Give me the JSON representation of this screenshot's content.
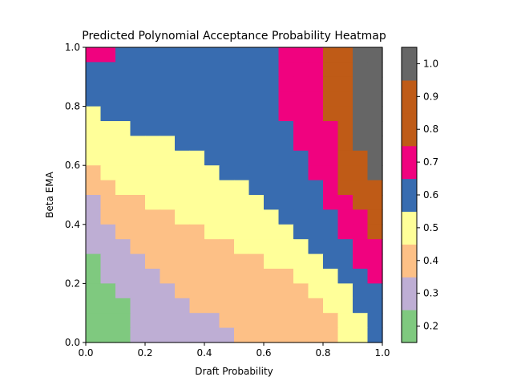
{
  "chart_data": {
    "type": "heatmap",
    "title": "Predicted Polynomial Acceptance Probability Heatmap",
    "xlabel": "Draft Probability",
    "ylabel": "Beta EMA",
    "xlim": [
      0.0,
      1.0
    ],
    "ylim": [
      0.0,
      1.0
    ],
    "xticks": [
      "0.0",
      "0.2",
      "0.4",
      "0.6",
      "0.8",
      "1.0"
    ],
    "yticks": [
      "0.0",
      "0.2",
      "0.4",
      "0.6",
      "0.8",
      "1.0"
    ],
    "grid_resolution": 20,
    "grid_note": "rows ordered from y=0.95 (top) down to y=0.0 (bottom); columns from x=0.0 to x=0.95; each cell spans 0.05 in x and y; values are the discrete color bins",
    "grid": [
      [
        0.7,
        0.7,
        0.6,
        0.6,
        0.6,
        0.6,
        0.6,
        0.6,
        0.6,
        0.6,
        0.6,
        0.6,
        0.6,
        0.7,
        0.7,
        0.7,
        0.8,
        0.8,
        1.0,
        1.0
      ],
      [
        0.6,
        0.6,
        0.6,
        0.6,
        0.6,
        0.6,
        0.6,
        0.6,
        0.6,
        0.6,
        0.6,
        0.6,
        0.6,
        0.7,
        0.7,
        0.7,
        0.8,
        0.8,
        1.0,
        1.0
      ],
      [
        0.6,
        0.6,
        0.6,
        0.6,
        0.6,
        0.6,
        0.6,
        0.6,
        0.6,
        0.6,
        0.6,
        0.6,
        0.6,
        0.7,
        0.7,
        0.7,
        0.8,
        0.8,
        1.0,
        1.0
      ],
      [
        0.6,
        0.6,
        0.6,
        0.6,
        0.6,
        0.6,
        0.6,
        0.6,
        0.6,
        0.6,
        0.6,
        0.6,
        0.6,
        0.7,
        0.7,
        0.7,
        0.8,
        0.8,
        1.0,
        1.0
      ],
      [
        0.5,
        0.6,
        0.6,
        0.6,
        0.6,
        0.6,
        0.6,
        0.6,
        0.6,
        0.6,
        0.6,
        0.6,
        0.6,
        0.7,
        0.7,
        0.7,
        0.8,
        0.8,
        1.0,
        1.0
      ],
      [
        0.5,
        0.5,
        0.5,
        0.6,
        0.6,
        0.6,
        0.6,
        0.6,
        0.6,
        0.6,
        0.6,
        0.6,
        0.6,
        0.6,
        0.7,
        0.7,
        0.7,
        0.8,
        1.0,
        1.0
      ],
      [
        0.5,
        0.5,
        0.5,
        0.5,
        0.5,
        0.5,
        0.6,
        0.6,
        0.6,
        0.6,
        0.6,
        0.6,
        0.6,
        0.6,
        0.7,
        0.7,
        0.7,
        0.8,
        1.0,
        1.0
      ],
      [
        0.5,
        0.5,
        0.5,
        0.5,
        0.5,
        0.5,
        0.5,
        0.5,
        0.6,
        0.6,
        0.6,
        0.6,
        0.6,
        0.6,
        0.6,
        0.7,
        0.7,
        0.8,
        0.8,
        1.0
      ],
      [
        0.4,
        0.5,
        0.5,
        0.5,
        0.5,
        0.5,
        0.5,
        0.5,
        0.5,
        0.6,
        0.6,
        0.6,
        0.6,
        0.6,
        0.6,
        0.7,
        0.7,
        0.8,
        0.8,
        1.0
      ],
      [
        0.4,
        0.4,
        0.5,
        0.5,
        0.5,
        0.5,
        0.5,
        0.5,
        0.5,
        0.5,
        0.5,
        0.6,
        0.6,
        0.6,
        0.6,
        0.6,
        0.7,
        0.8,
        0.8,
        0.9
      ],
      [
        0.3,
        0.4,
        0.4,
        0.4,
        0.5,
        0.5,
        0.5,
        0.5,
        0.5,
        0.5,
        0.5,
        0.5,
        0.6,
        0.6,
        0.6,
        0.6,
        0.7,
        0.7,
        0.8,
        0.8
      ],
      [
        0.3,
        0.4,
        0.4,
        0.4,
        0.4,
        0.4,
        0.5,
        0.5,
        0.5,
        0.5,
        0.5,
        0.5,
        0.5,
        0.6,
        0.6,
        0.6,
        0.6,
        0.7,
        0.7,
        0.8
      ],
      [
        0.3,
        0.3,
        0.4,
        0.4,
        0.4,
        0.4,
        0.4,
        0.4,
        0.5,
        0.5,
        0.5,
        0.5,
        0.5,
        0.5,
        0.6,
        0.6,
        0.6,
        0.7,
        0.7,
        0.8
      ],
      [
        0.3,
        0.3,
        0.3,
        0.4,
        0.4,
        0.4,
        0.4,
        0.4,
        0.4,
        0.4,
        0.5,
        0.5,
        0.5,
        0.5,
        0.5,
        0.6,
        0.6,
        0.6,
        0.7,
        0.7
      ],
      [
        0.2,
        0.3,
        0.3,
        0.3,
        0.4,
        0.4,
        0.4,
        0.4,
        0.4,
        0.4,
        0.4,
        0.4,
        0.5,
        0.5,
        0.5,
        0.5,
        0.6,
        0.6,
        0.7,
        0.7
      ],
      [
        0.2,
        0.3,
        0.3,
        0.3,
        0.3,
        0.4,
        0.4,
        0.4,
        0.4,
        0.4,
        0.4,
        0.4,
        0.4,
        0.4,
        0.5,
        0.5,
        0.5,
        0.6,
        0.6,
        0.7
      ],
      [
        0.2,
        0.2,
        0.3,
        0.3,
        0.3,
        0.3,
        0.4,
        0.4,
        0.4,
        0.4,
        0.4,
        0.4,
        0.4,
        0.4,
        0.4,
        0.5,
        0.5,
        0.5,
        0.6,
        0.6
      ],
      [
        0.2,
        0.2,
        0.2,
        0.3,
        0.3,
        0.3,
        0.3,
        0.4,
        0.4,
        0.4,
        0.4,
        0.4,
        0.4,
        0.4,
        0.4,
        0.4,
        0.5,
        0.5,
        0.6,
        0.6
      ],
      [
        0.2,
        0.2,
        0.2,
        0.3,
        0.3,
        0.3,
        0.3,
        0.3,
        0.3,
        0.4,
        0.4,
        0.4,
        0.4,
        0.4,
        0.4,
        0.4,
        0.4,
        0.5,
        0.5,
        0.6
      ],
      [
        0.2,
        0.2,
        0.2,
        0.3,
        0.3,
        0.3,
        0.3,
        0.3,
        0.3,
        0.3,
        0.4,
        0.4,
        0.4,
        0.4,
        0.4,
        0.4,
        0.4,
        0.5,
        0.5,
        0.6
      ]
    ],
    "colorbar": {
      "ticks": [
        "0.2",
        "0.3",
        "0.4",
        "0.5",
        "0.6",
        "0.7",
        "0.8",
        "0.9",
        "1.0"
      ],
      "range": [
        0.15,
        1.05
      ],
      "bins": [
        {
          "value": 0.2,
          "color": "#7fc97f"
        },
        {
          "value": 0.3,
          "color": "#beaed4"
        },
        {
          "value": 0.4,
          "color": "#fdc086"
        },
        {
          "value": 0.5,
          "color": "#ffff99"
        },
        {
          "value": 0.6,
          "color": "#386cb0"
        },
        {
          "value": 0.7,
          "color": "#f0027f"
        },
        {
          "value": 0.8,
          "color": "#bf5b17"
        },
        {
          "value": 0.9,
          "color": "#bf5b17"
        },
        {
          "value": 1.0,
          "color": "#666666"
        }
      ]
    }
  }
}
